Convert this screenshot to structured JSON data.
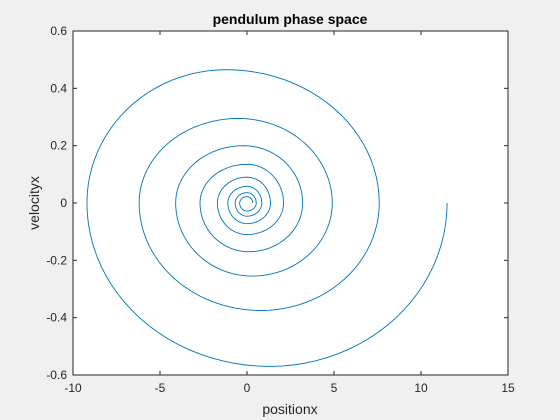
{
  "chart_data": {
    "type": "line",
    "title": "pendulum phase space",
    "xlabel": "positionx",
    "ylabel": "velocityx",
    "xlim": [
      -10,
      15
    ],
    "ylim": [
      -0.6,
      0.6
    ],
    "xticks": [
      -10,
      -5,
      0,
      5,
      10,
      15
    ],
    "yticks": [
      -0.6,
      -0.4,
      -0.2,
      0,
      0.2,
      0.4,
      0.6
    ],
    "xtick_labels": [
      "-10",
      "-5",
      "0",
      "5",
      "10",
      "15"
    ],
    "ytick_labels": [
      "-0.6",
      "-0.4",
      "-0.2",
      "0",
      "0.2",
      "0.4",
      "0.6"
    ],
    "grid": false,
    "line_color": "#0072bd",
    "background": "#ffffff",
    "figure_background": "#f0f0f0",
    "series": [
      {
        "start": {
          "x": 11.5,
          "y": 0
        },
        "extrema": [
          {
            "x": 11.5,
            "y": 0
          },
          {
            "x": 1.3,
            "y": -0.57
          },
          {
            "x": -9.2,
            "y": 0
          },
          {
            "x": -1.2,
            "y": 0.465
          },
          {
            "x": 7.6,
            "y": 0
          },
          {
            "x": 0.8,
            "y": -0.375
          },
          {
            "x": -6.2,
            "y": 0
          },
          {
            "x": -0.5,
            "y": 0.295
          },
          {
            "x": 4.9,
            "y": 0
          },
          {
            "x": 0.3,
            "y": -0.255
          },
          {
            "x": -4.1,
            "y": 0
          },
          {
            "x": -0.2,
            "y": 0.2
          },
          {
            "x": 3.2,
            "y": 0
          },
          {
            "x": 0.1,
            "y": -0.17
          },
          {
            "x": -2.7,
            "y": 0
          },
          {
            "x": 0,
            "y": 0.135
          },
          {
            "x": 2.1,
            "y": 0
          },
          {
            "x": 0,
            "y": -0.11
          },
          {
            "x": -1.7,
            "y": 0
          },
          {
            "x": 0,
            "y": 0.09
          },
          {
            "x": 1.35,
            "y": 0
          },
          {
            "x": 0,
            "y": -0.072
          },
          {
            "x": -1.1,
            "y": 0
          },
          {
            "x": 0,
            "y": 0.058
          },
          {
            "x": 0.85,
            "y": 0
          },
          {
            "x": 0,
            "y": -0.046
          },
          {
            "x": -0.68,
            "y": 0
          },
          {
            "x": 0,
            "y": 0.036
          },
          {
            "x": 0.53,
            "y": 0
          },
          {
            "x": 0,
            "y": -0.028
          },
          {
            "x": -0.42,
            "y": 0
          },
          {
            "x": 0,
            "y": 0.022
          },
          {
            "x": 0.33,
            "y": 0
          }
        ]
      }
    ]
  }
}
